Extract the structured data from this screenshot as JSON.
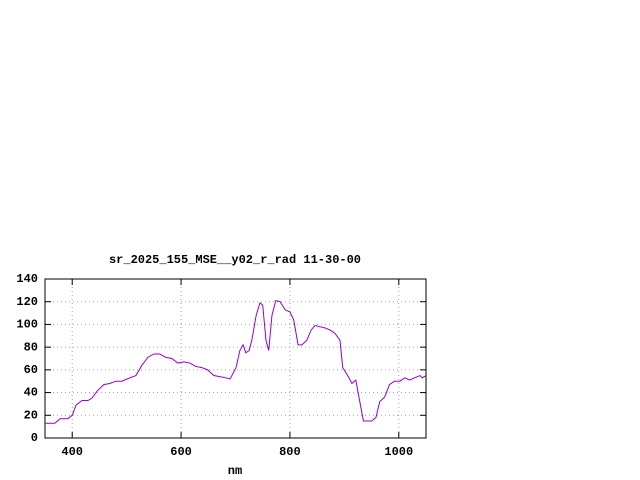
{
  "chart_data": {
    "type": "line",
    "title": "sr_2025_155_MSE__y02_r_rad 11-30-00",
    "x_label": "nm",
    "x": [
      350,
      368,
      378,
      392,
      400,
      407,
      418,
      429,
      436,
      447,
      458,
      469,
      480,
      491,
      506,
      517,
      528,
      539,
      550,
      561,
      572,
      583,
      594,
      605,
      616,
      627,
      638,
      649,
      660,
      671,
      682,
      690,
      701,
      708,
      714,
      719,
      725,
      730,
      738,
      745,
      750,
      756,
      761,
      767,
      774,
      782,
      791,
      800,
      807,
      815,
      822,
      831,
      839,
      846,
      855,
      864,
      874,
      883,
      892,
      897,
      906,
      914,
      921,
      928,
      935,
      950,
      958,
      965,
      974,
      983,
      992,
      1002,
      1011,
      1020,
      1029,
      1039,
      1043,
      1050
    ],
    "series": [
      {
        "color": "#9400d3",
        "values": [
          13,
          13,
          17,
          17,
          20,
          29,
          33,
          33,
          35,
          42,
          47,
          48,
          50,
          50,
          53,
          55,
          64,
          71,
          74,
          74,
          71,
          70,
          66,
          67,
          66,
          63,
          62,
          60,
          55,
          54,
          53,
          52,
          62,
          77,
          82,
          75,
          77,
          86,
          108,
          119,
          117,
          86,
          77,
          108,
          121,
          120,
          113,
          111,
          104,
          82,
          82,
          86,
          95,
          99,
          98,
          97,
          95,
          92,
          86,
          62,
          55,
          48,
          51,
          33,
          15,
          15,
          18,
          32,
          36,
          47,
          50,
          50,
          53,
          51,
          53,
          55,
          53,
          55
        ]
      }
    ],
    "xlim": [
      350,
      1050
    ],
    "xticks": [
      400,
      600,
      800,
      1000
    ],
    "ylim": [
      0,
      140
    ],
    "yticks": [
      0,
      20,
      40,
      60,
      80,
      100,
      120,
      140
    ],
    "grid": true
  }
}
